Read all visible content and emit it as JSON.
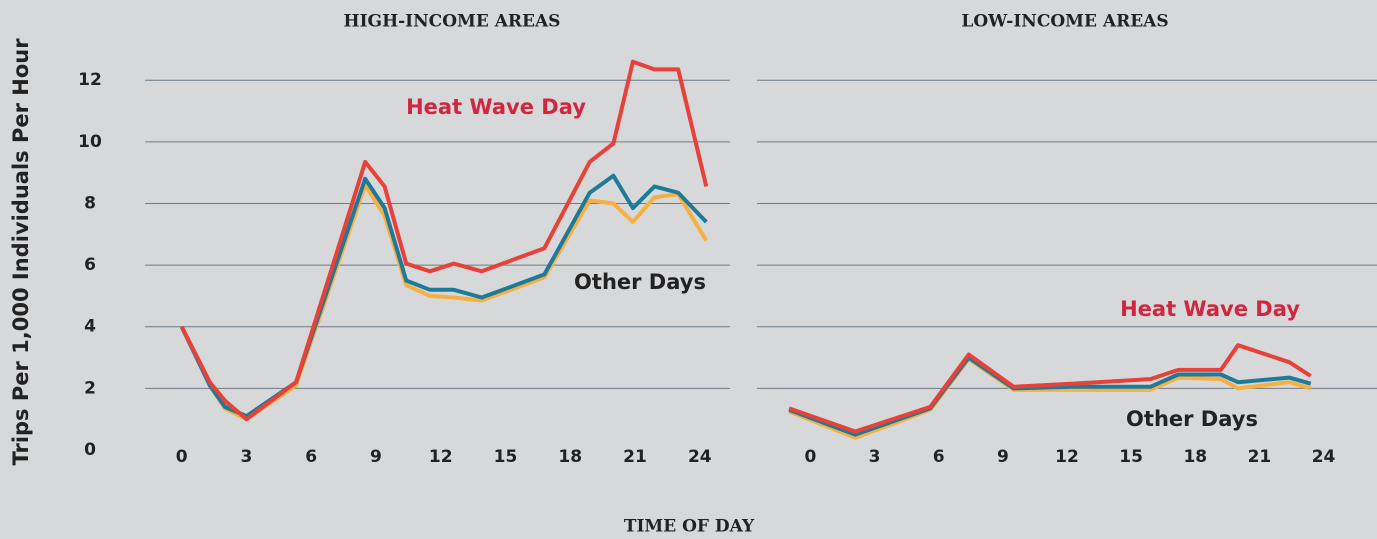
{
  "ylabel": "Trips Per 1,000 Individuals Per Hour",
  "xlabel": "TIME OF DAY",
  "chart_data": [
    {
      "type": "line",
      "title": "HIGH-INCOME AREAS",
      "x": [
        0,
        1.3,
        2,
        3,
        5.3,
        8.5,
        9.4,
        10.4,
        11.5,
        12.6,
        13.9,
        16.8,
        18.9,
        20,
        20.9,
        21.9,
        23,
        24.3
      ],
      "series": [
        {
          "color": "#f5b041",
          "values": [
            4.0,
            2.1,
            1.35,
            1.0,
            2.1,
            8.6,
            7.6,
            5.35,
            5.0,
            4.95,
            4.85,
            5.6,
            8.1,
            8.0,
            7.4,
            8.2,
            8.3,
            6.8
          ]
        },
        {
          "color": "#1f7a99",
          "values": [
            4.0,
            2.1,
            1.4,
            1.1,
            2.2,
            8.8,
            7.85,
            5.5,
            5.2,
            5.2,
            4.95,
            5.7,
            8.35,
            8.9,
            7.85,
            8.55,
            8.35,
            7.4
          ]
        },
        {
          "color": "#e8413a",
          "values": [
            4.0,
            2.2,
            1.6,
            1.0,
            2.2,
            9.35,
            8.55,
            6.05,
            5.8,
            6.05,
            5.8,
            6.55,
            9.35,
            9.95,
            12.6,
            12.35,
            12.35,
            8.55
          ]
        }
      ],
      "annotations": [
        {
          "text": "Heat Wave Day",
          "color": "#d0263f"
        },
        {
          "text": "Other Days",
          "color": "#222222"
        }
      ],
      "xlim": [
        -1.7,
        25.4
      ],
      "xticks": [
        0,
        3,
        6,
        9,
        12,
        15,
        18,
        21,
        24
      ],
      "ylim": [
        0,
        13.5
      ],
      "yticks": [
        0,
        2,
        4,
        6,
        8,
        10,
        12
      ],
      "grid": true
    },
    {
      "type": "line",
      "title": "LOW-INCOME AREAS",
      "x": [
        -1,
        2.1,
        5.6,
        7.4,
        9.5,
        12.2,
        15.9,
        17.2,
        19.2,
        20,
        22.4,
        23.4
      ],
      "series": [
        {
          "color": "#f5b041",
          "values": [
            1.25,
            0.4,
            1.3,
            2.95,
            1.95,
            1.95,
            1.95,
            2.35,
            2.3,
            2.0,
            2.2,
            2.0
          ]
        },
        {
          "color": "#1f7a99",
          "values": [
            1.3,
            0.5,
            1.35,
            3.0,
            2.0,
            2.05,
            2.05,
            2.45,
            2.45,
            2.2,
            2.35,
            2.15
          ]
        },
        {
          "color": "#e8413a",
          "values": [
            1.35,
            0.6,
            1.4,
            3.1,
            2.05,
            2.15,
            2.3,
            2.6,
            2.6,
            3.4,
            2.85,
            2.4
          ]
        }
      ],
      "annotations": [
        {
          "text": "Heat Wave Day",
          "color": "#d0263f"
        },
        {
          "text": "Other Days",
          "color": "#222222"
        }
      ],
      "xlim": [
        -2.5,
        26.5
      ],
      "xticks": [
        0,
        3,
        6,
        9,
        12,
        15,
        18,
        21,
        24
      ],
      "ylim": [
        0,
        13.5
      ],
      "yticks": [
        0,
        2,
        4,
        6,
        8,
        10,
        12
      ],
      "grid": true
    }
  ]
}
